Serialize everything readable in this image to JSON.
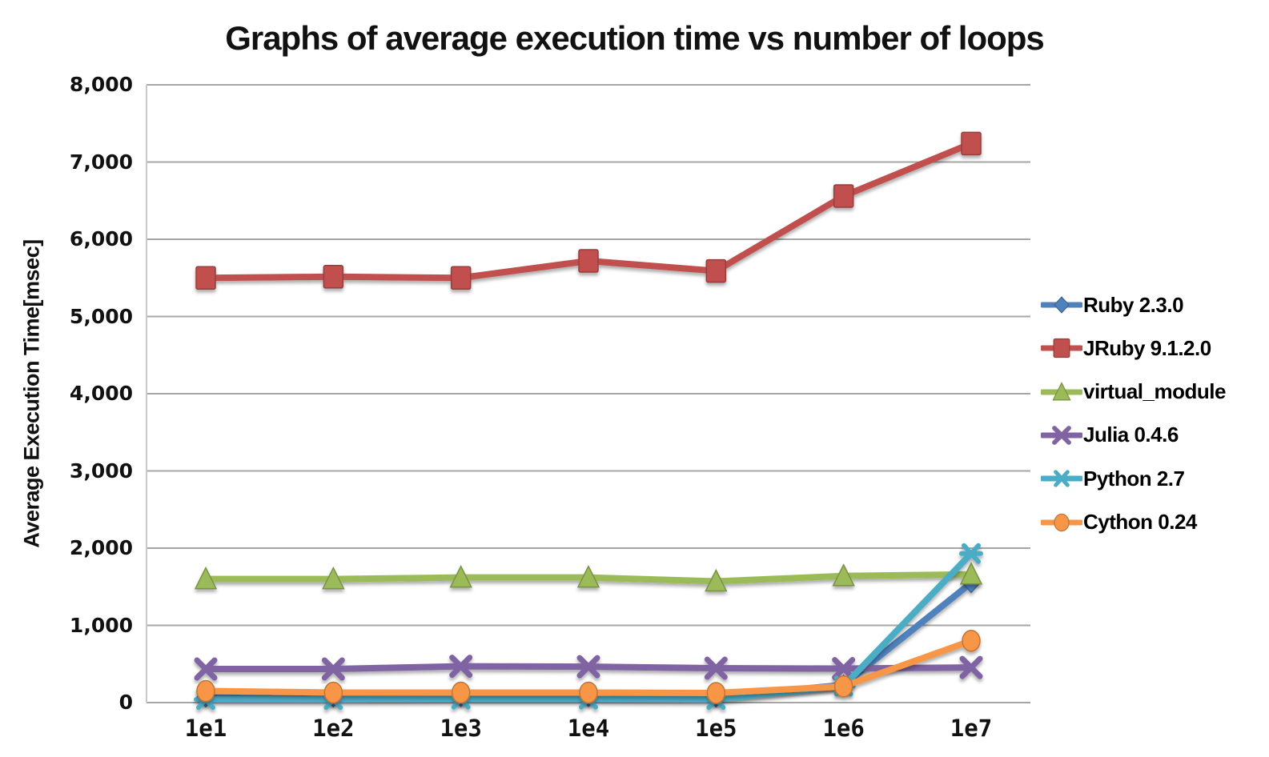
{
  "title": "Graphs of average execution time vs number of loops",
  "chart_data": {
    "type": "line",
    "title": "Graphs of average execution time vs number of loops",
    "xlabel": "",
    "ylabel": "Average Execution Time[msec]",
    "x_categories": [
      "1e1",
      "1e2",
      "1e3",
      "1e4",
      "1e5",
      "1e6",
      "1e7"
    ],
    "ylim": [
      0,
      8000
    ],
    "y_tick_step": 1000,
    "y_ticks": [
      "0",
      "1,000",
      "2,000",
      "3,000",
      "4,000",
      "5,000",
      "6,000",
      "7,000",
      "8,000"
    ],
    "grid": true,
    "grid_color": "#A6A6A6",
    "legend_position": "right",
    "series": [
      {
        "name": "Ruby 2.3.0",
        "color": "#4F81BD",
        "marker": "diamond",
        "values": [
          70,
          70,
          75,
          75,
          70,
          230,
          1550
        ]
      },
      {
        "name": "JRuby 9.1.2.0",
        "color": "#C0504D",
        "marker": "square",
        "values": [
          5500,
          5515,
          5500,
          5720,
          5590,
          6560,
          7240
        ]
      },
      {
        "name": "virtual_module",
        "color": "#9BBB59",
        "marker": "triangle",
        "values": [
          1600,
          1600,
          1620,
          1620,
          1570,
          1640,
          1660
        ]
      },
      {
        "name": "Julia 0.4.6",
        "color": "#8064A2",
        "marker": "x",
        "values": [
          435,
          435,
          470,
          465,
          445,
          440,
          455
        ]
      },
      {
        "name": "Python 2.7",
        "color": "#4BACC6",
        "marker": "asterisk",
        "values": [
          40,
          40,
          45,
          45,
          40,
          215,
          1930
        ]
      },
      {
        "name": "Cython 0.24",
        "color": "#F79646",
        "marker": "circle",
        "values": [
          150,
          130,
          130,
          130,
          125,
          210,
          800
        ]
      }
    ]
  }
}
